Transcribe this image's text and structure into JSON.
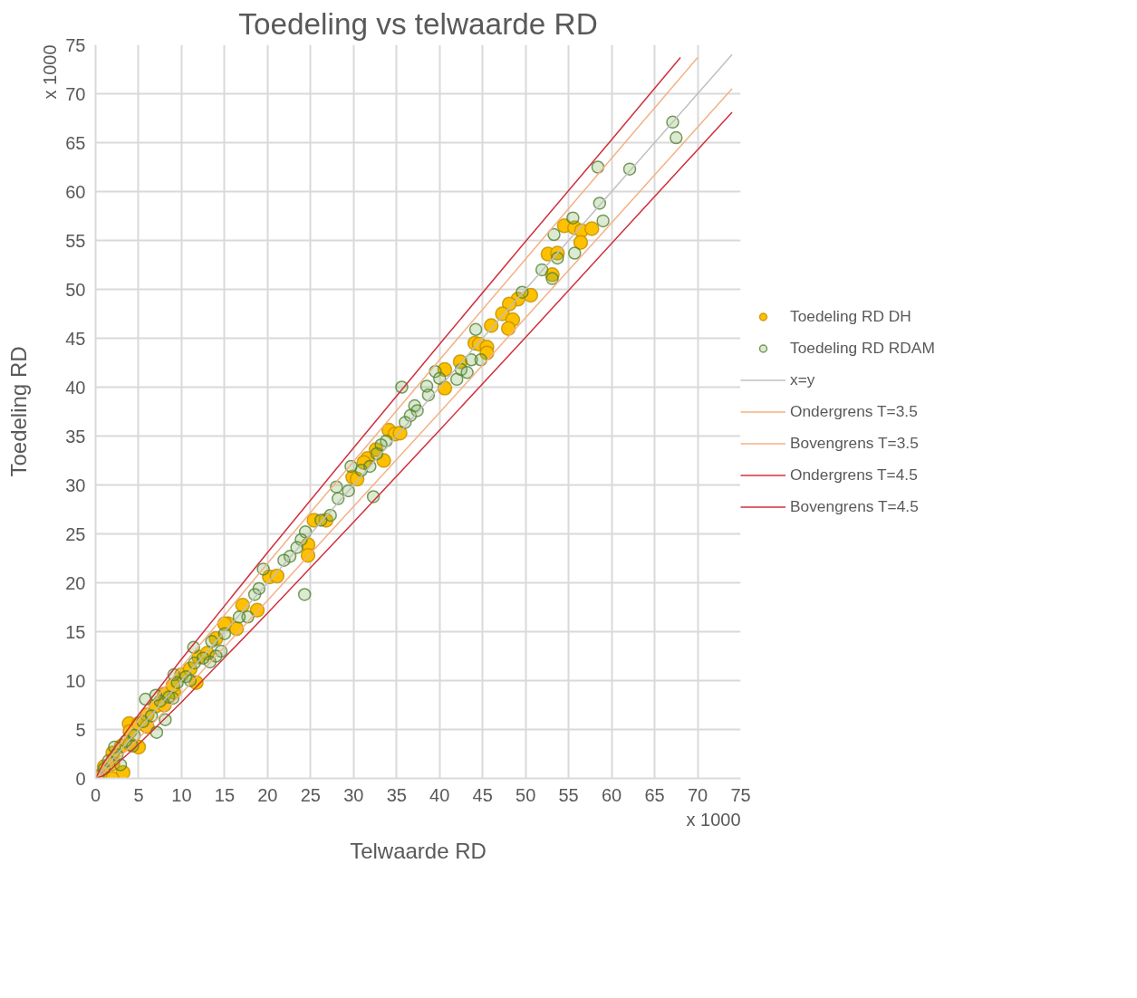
{
  "chart_data": {
    "type": "scatter",
    "title": "Toedeling vs telwaarde RD",
    "xlabel": "Telwaarde RD",
    "ylabel": "Toedeling RD",
    "annotations": [
      "x 1000",
      "x 1000"
    ],
    "xlim": [
      0,
      75
    ],
    "ylim": [
      0,
      75
    ],
    "xticks": [
      0,
      5,
      10,
      15,
      20,
      25,
      30,
      35,
      40,
      45,
      50,
      55,
      60,
      65,
      70,
      75
    ],
    "yticks": [
      0,
      5,
      10,
      15,
      20,
      25,
      30,
      35,
      40,
      45,
      50,
      55,
      60,
      65,
      70,
      75
    ],
    "grid": true,
    "legend": "right",
    "series": [
      {
        "name": "Toedeling RD DH",
        "marker": "circle",
        "color": "#ffc000",
        "x": [
          54.5,
          55.7,
          56.5,
          57.7,
          56.4,
          52.6,
          53.7,
          53.1,
          50.6,
          49.1,
          48.1,
          47.3,
          48.5,
          48.0,
          46.0,
          44.1,
          44.6,
          45.5,
          45.5,
          42.4,
          40.6,
          40.6,
          34.1,
          34.8,
          35.4,
          32.6,
          31.6,
          33.5,
          31.2,
          29.9,
          30.4,
          25.4,
          26.8,
          24.7,
          24.7,
          20.2,
          21.1,
          17.1,
          18.8,
          15.4,
          16.4,
          11.7,
          9.1,
          3.9,
          5.0,
          3.2,
          1.9,
          1.0,
          2.0,
          3.0,
          4.0,
          5.0,
          6.0,
          7.0,
          8.0,
          9.0,
          10.0,
          11.0,
          12.0,
          13.0,
          14.0,
          15.0,
          8.0,
          6.0,
          4.0,
          2.0,
          0.5
        ],
        "values": [
          56.5,
          56.3,
          56.0,
          56.2,
          54.8,
          53.6,
          53.7,
          51.5,
          49.4,
          49.0,
          48.5,
          47.5,
          46.9,
          46.0,
          46.3,
          44.5,
          44.4,
          44.1,
          43.5,
          42.6,
          41.8,
          39.9,
          35.6,
          35.2,
          35.3,
          33.6,
          32.7,
          32.5,
          32.3,
          30.8,
          30.6,
          26.4,
          26.4,
          23.9,
          22.8,
          20.6,
          20.7,
          17.7,
          17.2,
          15.8,
          15.3,
          9.8,
          8.8,
          5.6,
          3.2,
          0.6,
          0.0,
          1.2,
          2.6,
          3.3,
          4.8,
          5.6,
          6.5,
          7.4,
          8.6,
          9.5,
          10.6,
          11.2,
          12.4,
          12.8,
          14.3,
          15.8,
          7.5,
          5.3,
          3.5,
          1.5,
          0.3
        ]
      },
      {
        "name": "Toedeling RD RDAM",
        "marker": "circle",
        "color": "#70ad47",
        "x": [
          67.1,
          67.5,
          58.4,
          62.1,
          58.6,
          59.0,
          55.5,
          53.3,
          53.7,
          55.7,
          51.9,
          53.1,
          49.6,
          44.2,
          43.7,
          44.8,
          42.0,
          42.5,
          43.2,
          39.5,
          40.0,
          38.5,
          38.7,
          35.6,
          37.1,
          37.4,
          36.6,
          36.0,
          33.8,
          33.2,
          32.7,
          29.7,
          30.9,
          31.9,
          28.0,
          29.4,
          28.2,
          32.3,
          27.3,
          26.2,
          24.4,
          23.9,
          23.4,
          22.6,
          21.9,
          24.3,
          19.5,
          19.0,
          18.5,
          17.7,
          16.7,
          15.0,
          14.6,
          14.0,
          13.5,
          11.4,
          13.3,
          9.1,
          5.8,
          8.1,
          7.1,
          4.3,
          2.2,
          2.9,
          0.3,
          1.0,
          1.5,
          2.5,
          3.5,
          4.5,
          5.5,
          6.5,
          7.5,
          8.5,
          9.5,
          10.5,
          11.5,
          12.5,
          7.0,
          9.0,
          11.0
        ],
        "values": [
          67.1,
          65.5,
          62.5,
          62.3,
          58.8,
          57.0,
          57.3,
          55.6,
          53.2,
          53.7,
          52.0,
          51.1,
          49.7,
          45.9,
          42.8,
          42.8,
          40.8,
          41.8,
          41.5,
          41.6,
          40.9,
          40.1,
          39.2,
          40.0,
          38.1,
          37.6,
          37.1,
          36.4,
          34.5,
          34.1,
          33.2,
          31.9,
          31.5,
          31.9,
          29.8,
          29.4,
          28.6,
          28.8,
          26.9,
          26.4,
          25.2,
          24.4,
          23.6,
          22.7,
          22.3,
          18.8,
          21.4,
          19.4,
          18.8,
          16.5,
          16.5,
          14.8,
          13.0,
          12.5,
          14.0,
          13.4,
          11.9,
          10.6,
          8.1,
          6.0,
          4.7,
          3.3,
          3.2,
          1.4,
          0.2,
          1.0,
          1.8,
          2.4,
          3.8,
          4.4,
          5.8,
          6.4,
          7.9,
          8.3,
          9.8,
          10.4,
          11.8,
          12.3,
          8.5,
          8.2,
          10.0
        ]
      },
      {
        "name": "x=y",
        "type": "line",
        "color": "#bfbfbf",
        "x": [
          0,
          74
        ],
        "values": [
          0,
          74
        ]
      },
      {
        "name": "Ondergrens T=3.5",
        "type": "line",
        "color": "#f4b183",
        "x": [
          0,
          1,
          5,
          10,
          20,
          30,
          40,
          50,
          60,
          74
        ],
        "values": [
          0,
          0.6,
          4.1,
          8.7,
          18.2,
          27.8,
          37.4,
          47.1,
          56.8,
          70.5
        ]
      },
      {
        "name": "Bovengrens T=3.5",
        "type": "line",
        "color": "#f4b183",
        "x": [
          0,
          1,
          5,
          10,
          20,
          30,
          40,
          50,
          60,
          70
        ],
        "values": [
          0,
          1.4,
          6.0,
          11.4,
          22.0,
          32.4,
          42.8,
          53.1,
          63.4,
          73.7
        ]
      },
      {
        "name": "Ondergrens T=4.5",
        "type": "line",
        "color": "#d0303c",
        "x": [
          0,
          1,
          5,
          10,
          20,
          30,
          40,
          50,
          60,
          74
        ],
        "values": [
          0,
          0.3,
          3.5,
          7.8,
          16.9,
          26.2,
          35.6,
          45.1,
          54.7,
          68.1
        ]
      },
      {
        "name": "Bovengrens T=4.5",
        "type": "line",
        "color": "#d0303c",
        "x": [
          0,
          1,
          5,
          10,
          20,
          30,
          40,
          50,
          60,
          68
        ],
        "values": [
          0,
          1.7,
          6.5,
          12.2,
          23.1,
          33.8,
          44.4,
          54.9,
          65.3,
          73.7
        ]
      }
    ]
  }
}
